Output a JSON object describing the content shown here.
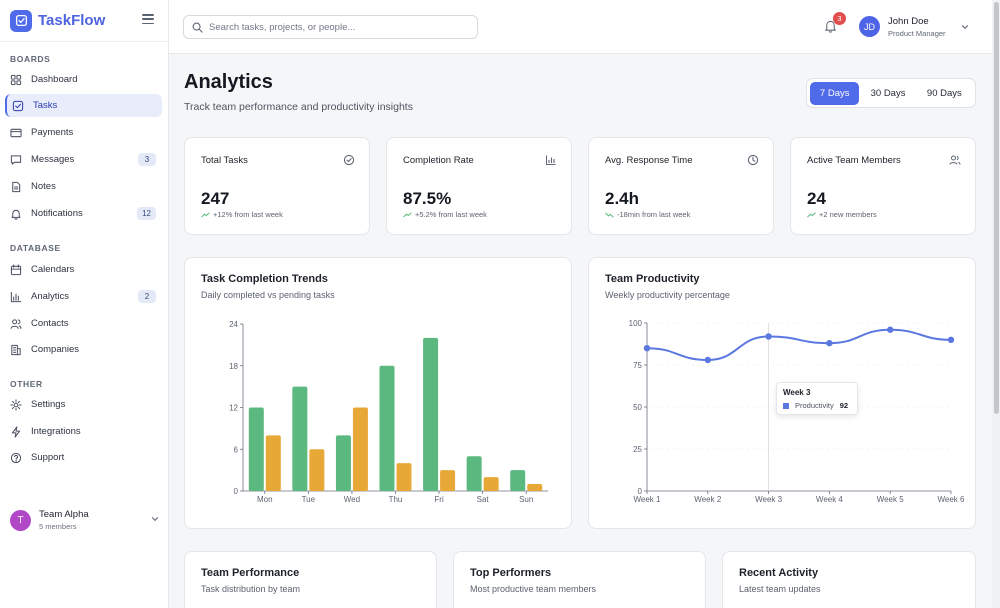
{
  "app": {
    "name": "TaskFlow"
  },
  "sidebar": {
    "sections": [
      {
        "label": "BOARDS",
        "items": [
          {
            "label": "Dashboard",
            "icon": "dashboard-icon",
            "badge": null
          },
          {
            "label": "Tasks",
            "icon": "tasks-icon",
            "badge": null,
            "active": true
          },
          {
            "label": "Payments",
            "icon": "credit-card-icon",
            "badge": null
          },
          {
            "label": "Messages",
            "icon": "message-icon",
            "badge": "3"
          },
          {
            "label": "Notes",
            "icon": "file-icon",
            "badge": null
          },
          {
            "label": "Notifications",
            "icon": "bell-icon",
            "badge": "12"
          }
        ]
      },
      {
        "label": "DATABASE",
        "items": [
          {
            "label": "Calendars",
            "icon": "calendar-icon",
            "badge": null
          },
          {
            "label": "Analytics",
            "icon": "bar-chart-icon",
            "badge": "2"
          },
          {
            "label": "Contacts",
            "icon": "users-icon",
            "badge": null
          },
          {
            "label": "Companies",
            "icon": "building-icon",
            "badge": null
          }
        ]
      },
      {
        "label": "OTHER",
        "items": [
          {
            "label": "Settings",
            "icon": "gear-icon",
            "badge": null
          },
          {
            "label": "Integrations",
            "icon": "lightning-icon",
            "badge": null
          },
          {
            "label": "Support",
            "icon": "help-icon",
            "badge": null
          }
        ]
      }
    ],
    "team": {
      "initial": "T",
      "name": "Team Alpha",
      "members": "5 members"
    }
  },
  "topbar": {
    "search_placeholder": "Search tasks, projects, or people...",
    "notification_count": "3",
    "user": {
      "initials": "JD",
      "name": "John Doe",
      "role": "Product Manager"
    }
  },
  "page": {
    "title": "Analytics",
    "subtitle": "Track team performance and productivity insights",
    "ranges": [
      "7 Days",
      "30 Days",
      "90 Days"
    ],
    "active_range": "7 Days"
  },
  "stats": [
    {
      "title": "Total Tasks",
      "value": "247",
      "change": "+12% from last week",
      "icon": "check-circle-icon",
      "trend": "up"
    },
    {
      "title": "Completion Rate",
      "value": "87.5%",
      "change": "+5.2% from last week",
      "icon": "bar-chart-icon",
      "trend": "up"
    },
    {
      "title": "Avg. Response Time",
      "value": "2.4h",
      "change": "-18min from last week",
      "icon": "clock-icon",
      "trend": "down"
    },
    {
      "title": "Active Team Members",
      "value": "24",
      "change": "+2 new members",
      "icon": "users-icon",
      "trend": "up"
    }
  ],
  "trend_card": {
    "title": "Task Completion Trends",
    "subtitle": "Daily completed vs pending tasks"
  },
  "productivity_card": {
    "title": "Team Productivity",
    "subtitle": "Weekly productivity percentage"
  },
  "tooltip": {
    "title": "Week 3",
    "label": "Productivity",
    "value": "92"
  },
  "bottom_cards": [
    {
      "title": "Team Performance",
      "subtitle": "Task distribution by team"
    },
    {
      "title": "Top Performers",
      "subtitle": "Most productive team members"
    },
    {
      "title": "Recent Activity",
      "subtitle": "Latest team updates"
    }
  ],
  "colors": {
    "accent": "#4f6bea",
    "completed": "#5bb87e",
    "pending": "#e8a838",
    "line": "#5b78e0"
  },
  "chart_data": [
    {
      "type": "bar",
      "title": "Task Completion Trends",
      "categories": [
        "Mon",
        "Tue",
        "Wed",
        "Thu",
        "Fri",
        "Sat",
        "Sun"
      ],
      "series": [
        {
          "name": "Completed",
          "values": [
            12,
            15,
            8,
            18,
            22,
            5,
            3
          ]
        },
        {
          "name": "Pending",
          "values": [
            8,
            6,
            12,
            4,
            3,
            2,
            1
          ]
        }
      ],
      "ylim": [
        0,
        24
      ],
      "yticks": [
        0,
        6,
        12,
        18,
        24
      ]
    },
    {
      "type": "line",
      "title": "Team Productivity",
      "categories": [
        "Week 1",
        "Week 2",
        "Week 3",
        "Week 4",
        "Week 5",
        "Week 6"
      ],
      "series": [
        {
          "name": "Productivity",
          "values": [
            85,
            78,
            92,
            88,
            96,
            90
          ]
        }
      ],
      "ylim": [
        0,
        100
      ],
      "yticks": [
        0,
        25,
        50,
        75,
        100
      ]
    }
  ]
}
